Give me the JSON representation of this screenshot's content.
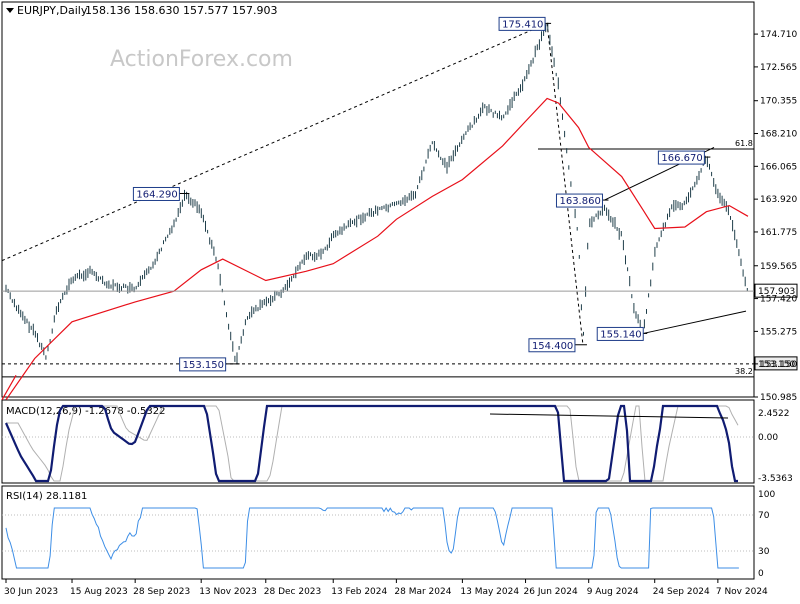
{
  "header": {
    "symbol": "EURJPY,Daily",
    "ohlc": "158.136 158.630 157.577 157.903"
  },
  "watermark": "ActionForex.com",
  "chart_data": [
    {
      "type": "candlestick",
      "panel": "price",
      "title": "EURJPY,Daily",
      "ylim": [
        150.985,
        176.285
      ],
      "y_ticks": [
        "174.710",
        "172.565",
        "170.355",
        "168.210",
        "166.065",
        "163.920",
        "161.775",
        "159.565",
        "157.420",
        "155.275",
        "153.150",
        "150.985"
      ],
      "x_labels": [
        "30 Jun 2023",
        "15 Aug 2023",
        "28 Sep 2023",
        "13 Nov 2023",
        "28 Dec 2023",
        "13 Feb 2024",
        "28 Mar 2024",
        "13 May 2024",
        "26 Jun 2024",
        "9 Aug 2024",
        "24 Sep 2024",
        "7 Nov 2024"
      ],
      "close_path_points": [
        [
          "30 Jun 2023",
          158.1
        ],
        [
          "10 Jul 2023",
          156.4
        ],
        [
          "20 Jul 2023",
          155.2
        ],
        [
          "28 Jul 2023",
          153.6
        ],
        [
          "4 Aug 2023",
          156.6
        ],
        [
          "15 Aug 2023",
          158.7
        ],
        [
          "28 Aug 2023",
          159.2
        ],
        [
          "10 Sep 2023",
          158.3
        ],
        [
          "28 Sep 2023",
          158.0
        ],
        [
          "10 Oct 2023",
          159.6
        ],
        [
          "25 Oct 2023",
          162.3
        ],
        [
          "2 Nov 2023",
          164.3
        ],
        [
          "13 Nov 2023",
          163.1
        ],
        [
          "24 Nov 2023",
          159.8
        ],
        [
          "7 Dec 2023",
          153.2
        ],
        [
          "15 Dec 2023",
          156.2
        ],
        [
          "28 Dec 2023",
          157.2
        ],
        [
          "10 Jan 2024",
          158.0
        ],
        [
          "25 Jan 2024",
          160.2
        ],
        [
          "5 Feb 2024",
          160.3
        ],
        [
          "13 Feb 2024",
          161.5
        ],
        [
          "1 Mar 2024",
          162.6
        ],
        [
          "15 Mar 2024",
          163.2
        ],
        [
          "28 Mar 2024",
          163.6
        ],
        [
          "10 Apr 2024",
          164.2
        ],
        [
          "22 Apr 2024",
          167.6
        ],
        [
          "2 May 2024",
          166.0
        ],
        [
          "13 May 2024",
          167.9
        ],
        [
          "28 May 2024",
          169.9
        ],
        [
          "10 Jun 2024",
          169.2
        ],
        [
          "26 Jun 2024",
          171.8
        ],
        [
          "5 Jul 2024",
          174.0
        ],
        [
          "11 Jul 2024",
          175.4
        ],
        [
          "19 Jul 2024",
          171.3
        ],
        [
          "26 Jul 2024",
          166.0
        ],
        [
          "2 Aug 2024",
          161.2
        ],
        [
          "5 Aug 2024",
          154.4
        ],
        [
          "9 Aug 2024",
          162.2
        ],
        [
          "20 Aug 2024",
          163.4
        ],
        [
          "1 Sep 2024",
          161.5
        ],
        [
          "10 Sep 2024",
          156.6
        ],
        [
          "16 Sep 2024",
          155.1
        ],
        [
          "24 Sep 2024",
          160.4
        ],
        [
          "5 Oct 2024",
          163.3
        ],
        [
          "15 Oct 2024",
          163.6
        ],
        [
          "25 Oct 2024",
          165.6
        ],
        [
          "30 Oct 2024",
          166.6
        ],
        [
          "7 Nov 2024",
          164.2
        ],
        [
          "15 Nov 2024",
          163.1
        ],
        [
          "22 Nov 2024",
          160.2
        ],
        [
          "28 Nov 2024",
          157.9
        ]
      ],
      "ma_path_points": [
        [
          "30 Jun 2023",
          150.8
        ],
        [
          "20 Jul 2023",
          153.5
        ],
        [
          "15 Aug 2023",
          155.9
        ],
        [
          "28 Sep 2023",
          157.2
        ],
        [
          "25 Oct 2023",
          157.9
        ],
        [
          "13 Nov 2023",
          159.3
        ],
        [
          "28 Nov 2023",
          160.0
        ],
        [
          "28 Dec 2023",
          158.6
        ],
        [
          "25 Jan 2024",
          159.2
        ],
        [
          "13 Feb 2024",
          159.7
        ],
        [
          "15 Mar 2024",
          161.5
        ],
        [
          "28 Mar 2024",
          162.6
        ],
        [
          "22 Apr 2024",
          164.1
        ],
        [
          "13 May 2024",
          165.2
        ],
        [
          "10 Jun 2024",
          167.4
        ],
        [
          "26 Jun 2024",
          169.0
        ],
        [
          "11 Jul 2024",
          170.5
        ],
        [
          "19 Jul 2024",
          170.2
        ],
        [
          "2 Aug 2024",
          168.6
        ],
        [
          "9 Aug 2024",
          167.3
        ],
        [
          "1 Sep 2024",
          165.4
        ],
        [
          "16 Sep 2024",
          163.2
        ],
        [
          "24 Sep 2024",
          162.0
        ],
        [
          "15 Oct 2024",
          162.1
        ],
        [
          "30 Oct 2024",
          163.1
        ],
        [
          "15 Nov 2024",
          163.5
        ],
        [
          "28 Nov 2024",
          162.8
        ]
      ],
      "labels": [
        {
          "text": "175.410",
          "date": "11 Jul 2024",
          "value": 175.41
        },
        {
          "text": "164.290",
          "date": "2 Nov 2023",
          "value": 164.29
        },
        {
          "text": "153.150",
          "date": "7 Dec 2023",
          "value": 153.15
        },
        {
          "text": "166.670",
          "date": "30 Oct 2024",
          "value": 166.67
        },
        {
          "text": "163.860",
          "date": "20 Aug 2024",
          "value": 163.86
        },
        {
          "text": "154.400",
          "date": "5 Aug 2024",
          "value": 154.4
        },
        {
          "text": "155.140",
          "date": "16 Sep 2024",
          "value": 155.14
        }
      ],
      "fib_labels": {
        "top": "61.8",
        "bottom": "38.2"
      },
      "level_161_8": 167.2,
      "level_153_15": "153.150",
      "level_38_2": 152.3,
      "current_price": "157.903"
    },
    {
      "type": "line",
      "panel": "macd",
      "title": "MACD(12,26,9) -1.2678 -0.5322",
      "y_ticks": [
        "2.4522",
        "0.00",
        "-3.5363"
      ],
      "ylim": [
        -4.0,
        3.0
      ]
    },
    {
      "type": "line",
      "panel": "rsi",
      "title": "RSI(14) 28.1181",
      "y_ticks": [
        "100",
        "70",
        "30",
        "0"
      ],
      "ylim": [
        0,
        100
      ]
    }
  ]
}
